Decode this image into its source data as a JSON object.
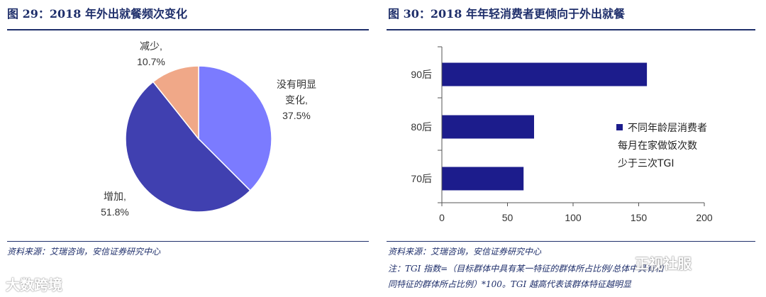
{
  "left": {
    "title": "图 29：2018 年外出就餐频次变化",
    "source": "资料来源：艾瑞咨询，安信证券研究中心"
  },
  "right": {
    "title": "图 30：2018 年年轻消费者更倾向于外出就餐",
    "source": "资料来源：艾瑞咨询，安信证券研究中心",
    "note_line1": "注：TGI 指数=（目标群体中具有某一特征的群体所占比例/总体中具有相",
    "note_line2": "同特征的群体所占比例）*100。TGI 越高代表该群体特征越明显"
  },
  "watermark_left": "大数跨境",
  "watermark_right": "正视社服",
  "chart_data": [
    {
      "type": "pie",
      "categories": [
        "没有明显变化",
        "增加",
        "减少"
      ],
      "label_lines": [
        [
          "没有明显",
          "变化,",
          "37.5%"
        ],
        [
          "增加,",
          "51.8%"
        ],
        [
          "减少,",
          "10.7%"
        ]
      ],
      "values": [
        37.5,
        51.8,
        10.7
      ],
      "colors": [
        "#7b7bff",
        "#4040b0",
        "#f0a888"
      ]
    },
    {
      "type": "bar",
      "orientation": "horizontal",
      "categories": [
        "90后",
        "80后",
        "70后"
      ],
      "series": [
        {
          "name": "不同年龄层消费者每月在家做饭次数少于三次TGI",
          "legend_lines": [
            "不同年龄层消费者",
            "每月在家做饭次数",
            "少于三次TGI"
          ],
          "values": [
            156,
            70,
            62
          ],
          "color": "#1c1c8c"
        }
      ],
      "xlim": [
        0,
        200
      ],
      "xticks": [
        0,
        50,
        100,
        150,
        200
      ],
      "legend_position": "right"
    }
  ]
}
